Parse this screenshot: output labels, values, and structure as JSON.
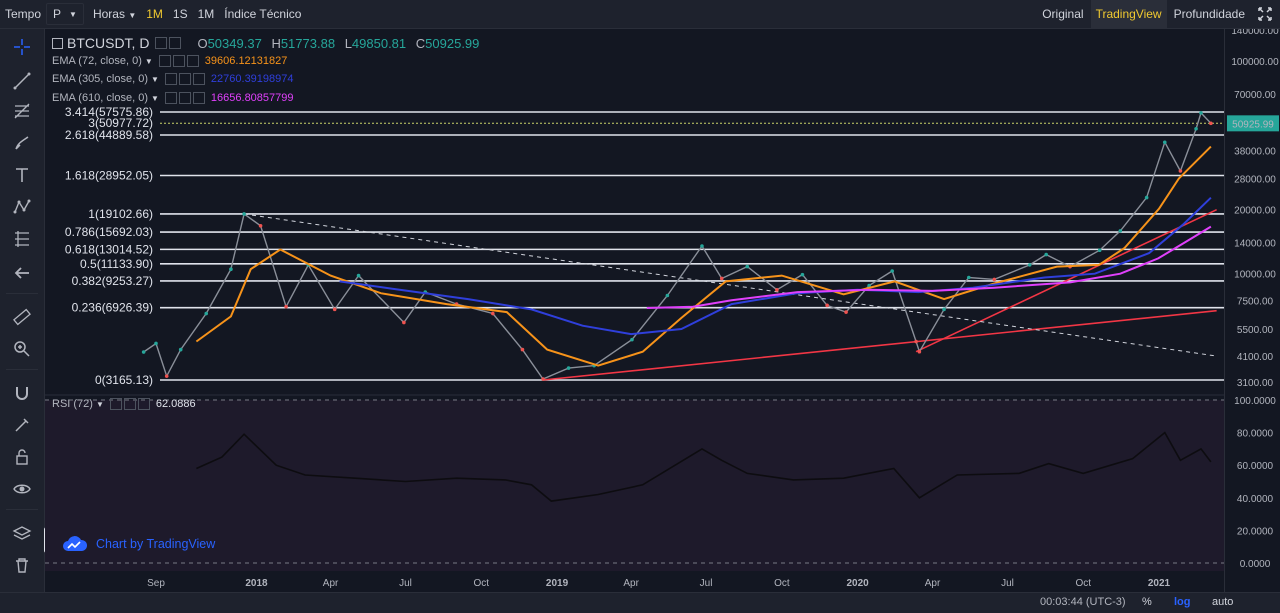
{
  "topbar": {
    "tempo_label": "Tempo",
    "tempo_select": "P",
    "horas_label": "Horas",
    "intervals": [
      "1M",
      "1S",
      "1M"
    ],
    "active_interval": 0,
    "indicator_label": "Índice Técnico",
    "right_tabs": [
      "Original",
      "TradingView",
      "Profundidade"
    ],
    "active_right_tab": 1
  },
  "legend": {
    "symbol": "BTCUSDT, D",
    "ohlc": {
      "o_label": "O",
      "o": "50349.37",
      "h_label": "H",
      "h": "51773.88",
      "l_label": "L",
      "l": "49850.81",
      "c_label": "C",
      "c": "50925.99"
    },
    "ema1": {
      "label": "EMA (72, close, 0)",
      "value": "39606.12131827",
      "color": "#f7931a"
    },
    "ema2": {
      "label": "EMA (305, close, 0)",
      "value": "22760.39198974",
      "color": "#2f3fdb"
    },
    "ema3": {
      "label": "EMA (610, close, 0)",
      "value": "16656.80857799",
      "color": "#e040fb"
    },
    "rsi": {
      "label": "RSI (72)",
      "value": "62.0886"
    }
  },
  "credit": {
    "text": "Chart by TradingView"
  },
  "status": {
    "time": "00:03:44 (UTC-3)",
    "percent": "%",
    "log": "log",
    "auto": "auto"
  },
  "chart_data": {
    "type": "line",
    "title": "BTCUSDT, D",
    "y_scale": "log",
    "price_ticks": [
      "140000.00",
      "100000.00",
      "70000.00",
      "50925.99",
      "38000.00",
      "28000.00",
      "20000.00",
      "14000.00",
      "10000.00",
      "7500.00",
      "5500.00",
      "4100.00",
      "3100.00"
    ],
    "last_price": "50925.99",
    "last_price_color": "#26a69a",
    "time_ticks": [
      "Sep",
      "2018",
      "Apr",
      "Jul",
      "Oct",
      "2019",
      "Apr",
      "Jul",
      "Oct",
      "2020",
      "Apr",
      "Jul",
      "Oct",
      "2021"
    ],
    "fib_levels": [
      {
        "ratio": "3.414",
        "price": "57575.86",
        "label": "3.414(57575.86)"
      },
      {
        "ratio": "3",
        "price": "50977.72",
        "label": "3(50977.72)"
      },
      {
        "ratio": "2.618",
        "price": "44889.58",
        "label": "2.618(44889.58)"
      },
      {
        "ratio": "1.618",
        "price": "28952.05",
        "label": "1.618(28952.05)"
      },
      {
        "ratio": "1",
        "price": "19102.66",
        "label": "1(19102.66)"
      },
      {
        "ratio": "0.786",
        "price": "15692.03",
        "label": "0.786(15692.03)"
      },
      {
        "ratio": "0.618",
        "price": "13014.52",
        "label": "0.618(13014.52)"
      },
      {
        "ratio": "0.5",
        "price": "11133.90",
        "label": "0.5(11133.90)"
      },
      {
        "ratio": "0.382",
        "price": "9253.27",
        "label": "0.382(9253.27)"
      },
      {
        "ratio": "0.236",
        "price": "6926.39",
        "label": "0.236(6926.39)"
      },
      {
        "ratio": "0",
        "price": "3165.13",
        "label": "0(3165.13)"
      }
    ],
    "price_series": {
      "name": "BTCUSDT",
      "dates": [
        "2017-08-17",
        "2017-09-01",
        "2017-09-14",
        "2017-10-01",
        "2017-11-01",
        "2017-12-01",
        "2017-12-17",
        "2018-01-06",
        "2018-02-06",
        "2018-03-05",
        "2018-04-06",
        "2018-05-05",
        "2018-06-29",
        "2018-07-25",
        "2018-09-01",
        "2018-10-15",
        "2018-11-20",
        "2018-12-15",
        "2019-01-15",
        "2019-02-15",
        "2019-04-02",
        "2019-05-15",
        "2019-06-26",
        "2019-07-20",
        "2019-08-20",
        "2019-09-25",
        "2019-10-26",
        "2019-11-25",
        "2019-12-18",
        "2020-01-15",
        "2020-02-12",
        "2020-03-12",
        "2020-03-16",
        "2020-04-15",
        "2020-05-15",
        "2020-06-15",
        "2020-07-28",
        "2020-08-17",
        "2020-09-15",
        "2020-10-21",
        "2020-11-15",
        "2020-12-17",
        "2021-01-08",
        "2021-01-27",
        "2021-02-15",
        "2021-02-21",
        "2021-03-05"
      ],
      "values": [
        4285,
        4700,
        3300,
        4400,
        6500,
        10500,
        19100,
        16800,
        7000,
        11000,
        6800,
        9800,
        5900,
        8200,
        7200,
        6500,
        4400,
        3200,
        3600,
        3700,
        4900,
        7900,
        13500,
        9500,
        10800,
        8400,
        9900,
        7100,
        6600,
        8800,
        10300,
        4800,
        4300,
        6800,
        9600,
        9400,
        11000,
        12300,
        10800,
        12900,
        15900,
        22800,
        41500,
        30400,
        48000,
        57000,
        50926
      ]
    },
    "series": [
      {
        "name": "EMA (72, close, 0)",
        "color": "#f7931a",
        "dates": [
          "2017-10-20",
          "2017-12-01",
          "2017-12-25",
          "2018-01-30",
          "2018-04-01",
          "2018-06-01",
          "2018-08-20",
          "2018-11-01",
          "2018-12-20",
          "2019-02-20",
          "2019-04-15",
          "2019-06-01",
          "2019-07-25",
          "2019-10-01",
          "2019-12-15",
          "2020-02-15",
          "2020-04-15",
          "2020-06-15",
          "2020-08-30",
          "2020-10-20",
          "2020-11-20",
          "2021-01-01",
          "2021-01-25",
          "2021-03-05"
        ],
        "values": [
          4800,
          6300,
          10500,
          13000,
          9800,
          8100,
          7200,
          6600,
          4400,
          3700,
          4300,
          6200,
          9200,
          9800,
          8000,
          9200,
          7600,
          9000,
          10800,
          11000,
          13200,
          20200,
          28000,
          39606
        ]
      },
      {
        "name": "EMA (305, close, 0)",
        "color": "#2f3fdb",
        "dates": [
          "2018-04-12",
          "2018-06-15",
          "2018-09-15",
          "2018-12-01",
          "2019-02-01",
          "2019-04-01",
          "2019-06-01",
          "2019-08-01",
          "2019-10-20",
          "2020-01-01",
          "2020-03-15",
          "2020-05-20",
          "2020-08-15",
          "2020-10-15",
          "2020-12-20",
          "2021-01-30",
          "2021-03-05"
        ],
        "values": [
          9200,
          8500,
          7600,
          6800,
          5700,
          5200,
          5500,
          7200,
          8100,
          8400,
          8200,
          8600,
          9600,
          10000,
          12500,
          17000,
          22760
        ]
      },
      {
        "name": "EMA (610, close, 0)",
        "color": "#e040fb",
        "dates": [
          "2019-04-20",
          "2019-06-15",
          "2019-08-01",
          "2019-10-20",
          "2020-01-15",
          "2020-04-01",
          "2020-06-15",
          "2020-09-15",
          "2020-11-15",
          "2020-12-31",
          "2021-02-01",
          "2021-03-05"
        ],
        "values": [
          6900,
          7000,
          7500,
          8200,
          8400,
          8300,
          8600,
          9100,
          10000,
          11800,
          14000,
          16657
        ]
      }
    ],
    "trendlines": [
      {
        "name": "support-upper",
        "color": "#f23645",
        "style": "solid",
        "from_date": "2018-12-15",
        "from_value": 3165,
        "to_date": "2021-03-12",
        "to_value": 6700
      },
      {
        "name": "support-lower",
        "color": "#f23645",
        "style": "solid",
        "from_date": "2020-03-12",
        "from_value": 4300,
        "to_date": "2021-03-12",
        "to_value": 20000
      },
      {
        "name": "resistance-dashed",
        "color": "#d1d4dc",
        "style": "dashed",
        "from_date": "2017-12-17",
        "from_value": 19102,
        "to_date": "2021-03-12",
        "to_value": 4100
      }
    ],
    "rsi": {
      "name": "RSI (72)",
      "ticks": [
        "100.0000",
        "80.0000",
        "60.0000",
        "40.0000",
        "20.0000",
        "0.0000"
      ],
      "dates": [
        "2017-10-20",
        "2017-11-20",
        "2017-12-17",
        "2018-01-25",
        "2018-03-01",
        "2018-05-01",
        "2018-07-01",
        "2018-09-01",
        "2018-10-30",
        "2018-12-01",
        "2018-12-25",
        "2019-02-20",
        "2019-04-15",
        "2019-06-26",
        "2019-07-20",
        "2019-08-20",
        "2019-10-15",
        "2019-12-15",
        "2020-02-14",
        "2020-03-16",
        "2020-05-01",
        "2020-07-15",
        "2020-08-20",
        "2020-10-01",
        "2020-11-30",
        "2021-01-08",
        "2021-01-27",
        "2021-02-21",
        "2021-03-05"
      ],
      "values": [
        58,
        65,
        79,
        60,
        54,
        52,
        50,
        52,
        51,
        48,
        38,
        42,
        48,
        70,
        63,
        55,
        51,
        52,
        58,
        40,
        54,
        55,
        61,
        55,
        64,
        80,
        63,
        70,
        62
      ]
    }
  }
}
